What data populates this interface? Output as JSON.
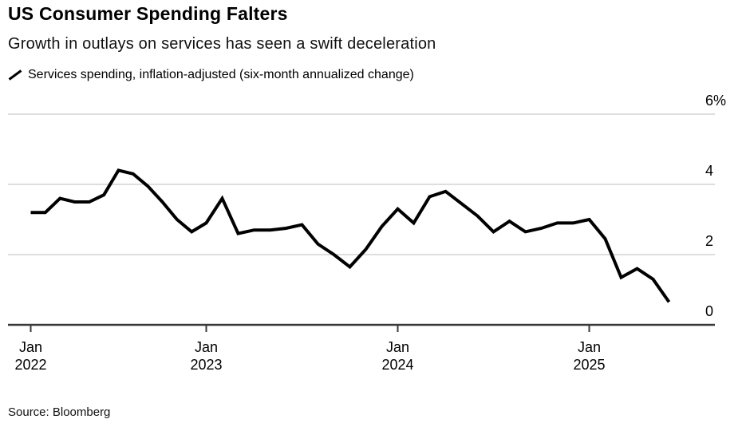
{
  "header": {
    "title": "US Consumer Spending Falters",
    "subtitle": "Growth in outlays on services has seen a swift deceleration",
    "legend": {
      "icon": "line-swatch-icon",
      "label": "Services spending, inflation-adjusted (six-month annualized change)"
    }
  },
  "footer": {
    "source": "Source: Bloomberg"
  },
  "colors": {
    "line": "#000000",
    "gridline": "#dedede",
    "baseline": "#3a3a3a",
    "text": "#000000",
    "background": "#ffffff"
  },
  "chart_data": {
    "type": "line",
    "title": "US Consumer Spending Falters",
    "subtitle": "Growth in outlays on services has seen a swift deceleration",
    "unit": "%",
    "grid": "horizontal",
    "legend_position": "top-left",
    "ylim": [
      0,
      6
    ],
    "ylabel": "",
    "xlabel": "",
    "x": [
      "2022-01",
      "2022-02",
      "2022-03",
      "2022-04",
      "2022-05",
      "2022-06",
      "2022-07",
      "2022-08",
      "2022-09",
      "2022-10",
      "2022-11",
      "2022-12",
      "2023-01",
      "2023-02",
      "2023-03",
      "2023-04",
      "2023-05",
      "2023-06",
      "2023-07",
      "2023-08",
      "2023-09",
      "2023-10",
      "2023-11",
      "2023-12",
      "2024-01",
      "2024-02",
      "2024-03",
      "2024-04",
      "2024-05",
      "2024-06",
      "2024-07",
      "2024-08",
      "2024-09",
      "2024-10",
      "2024-11",
      "2024-12",
      "2025-01",
      "2025-02",
      "2025-03",
      "2025-04",
      "2025-05",
      "2025-06"
    ],
    "series": [
      {
        "name": "Services spending, inflation-adjusted (six-month annualized change)",
        "values": [
          3.2,
          3.2,
          3.6,
          3.5,
          3.5,
          3.7,
          4.4,
          4.3,
          3.95,
          3.5,
          3.0,
          2.65,
          2.9,
          3.6,
          2.6,
          2.7,
          2.7,
          2.75,
          2.85,
          2.3,
          2.0,
          1.65,
          2.15,
          2.8,
          3.3,
          2.9,
          3.65,
          3.8,
          3.45,
          3.1,
          2.65,
          2.95,
          2.65,
          2.75,
          2.9,
          2.9,
          3.0,
          2.45,
          1.35,
          1.6,
          1.3,
          0.65
        ]
      }
    ],
    "y_ticks": [
      {
        "label": "6%",
        "value": 6
      },
      {
        "label": "4",
        "value": 4
      },
      {
        "label": "2",
        "value": 2
      },
      {
        "label": "0",
        "value": 0
      }
    ],
    "x_ticks": [
      {
        "month": "Jan",
        "year": "2022",
        "month_index": 0
      },
      {
        "month": "Jan",
        "year": "2023",
        "month_index": 12
      },
      {
        "month": "Jan",
        "year": "2024",
        "month_index": 24
      },
      {
        "month": "Jan",
        "year": "2025",
        "month_index": 36
      }
    ],
    "source": "Source: Bloomberg"
  }
}
